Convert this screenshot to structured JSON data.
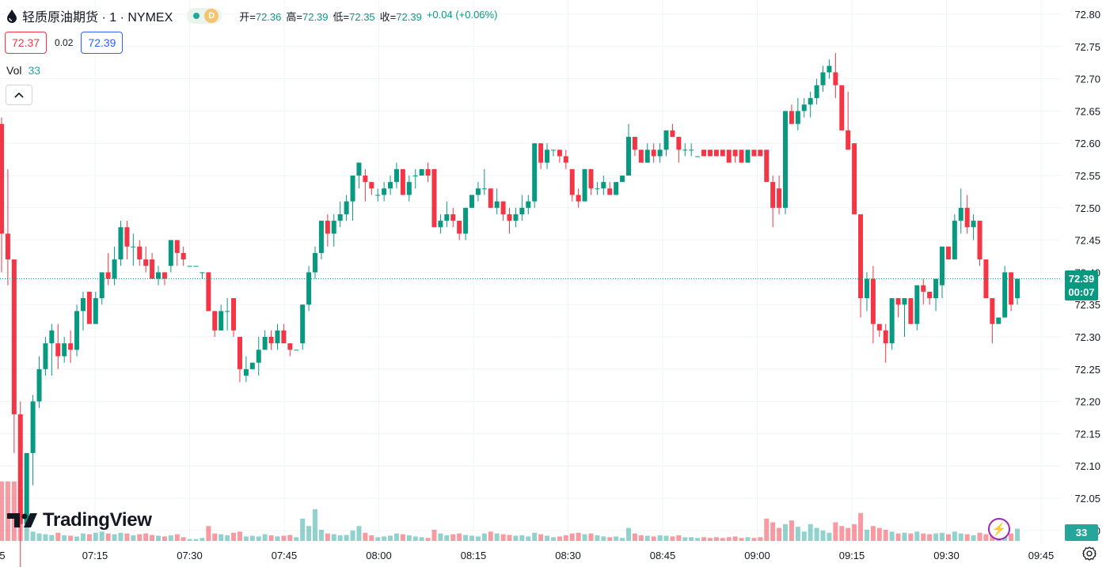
{
  "header": {
    "symbol": "轻质原油期货 · 1 · NYMEX",
    "status_letter": "D",
    "ohlc": [
      {
        "key": "开=",
        "value": "72.36"
      },
      {
        "key": "高=",
        "value": "72.39"
      },
      {
        "key": "低=",
        "value": "72.35"
      },
      {
        "key": "收=",
        "value": "72.39"
      }
    ],
    "change": "+0.04 (+0.06%)"
  },
  "quote": {
    "sell": "72.37",
    "spread": "0.02",
    "buy": "72.39"
  },
  "volume": {
    "label": "Vol",
    "value": "33"
  },
  "branding": {
    "logo_text": "TradingView"
  },
  "badges": {
    "last_price": "72.39",
    "countdown": "00:07",
    "last_volume": "33"
  },
  "colors": {
    "up": "#089981",
    "down": "#f23645",
    "vol_up": "#26a69a",
    "vol_down": "#f23645",
    "grid": "#f0f3fa"
  },
  "chart_data": {
    "type": "candlestick",
    "title": "轻质原油期货 · 1 · NYMEX",
    "interval": "1 minute",
    "ylim": [
      71.99,
      72.83
    ],
    "y_ticks": [
      "72.80",
      "72.75",
      "72.70",
      "72.65",
      "72.60",
      "72.55",
      "72.50",
      "72.45",
      "72.40",
      "72.35",
      "72.30",
      "72.25",
      "72.20",
      "72.15",
      "72.10",
      "72.05",
      "72.00"
    ],
    "x_ticks": [
      "07:15",
      "07:30",
      "07:45",
      "08:00",
      "08:15",
      "08:30",
      "08:45",
      "09:00",
      "09:15",
      "09:30",
      "09:45"
    ],
    "x_tick_partial_left": "5",
    "last_price": 72.39,
    "grid": true,
    "ohlcv": [
      [
        72.63,
        72.64,
        72.4,
        72.46,
        160
      ],
      [
        72.46,
        72.56,
        72.38,
        72.42,
        160
      ],
      [
        72.42,
        72.42,
        72.12,
        72.18,
        160
      ],
      [
        72.18,
        72.2,
        71.93,
        72.01,
        140
      ],
      [
        72.01,
        72.12,
        72.07,
        72.12,
        50
      ],
      [
        72.12,
        72.21,
        72.07,
        72.2,
        25
      ],
      [
        72.2,
        72.27,
        72.19,
        72.25,
        20
      ],
      [
        72.25,
        72.3,
        72.24,
        72.29,
        18
      ],
      [
        72.29,
        72.32,
        72.24,
        72.31,
        16
      ],
      [
        72.29,
        72.32,
        72.25,
        72.27,
        22
      ],
      [
        72.27,
        72.3,
        72.26,
        72.29,
        15
      ],
      [
        72.29,
        72.31,
        72.26,
        72.28,
        14
      ],
      [
        72.28,
        72.35,
        72.27,
        72.34,
        12
      ],
      [
        72.34,
        72.37,
        72.31,
        72.36,
        20
      ],
      [
        72.37,
        72.37,
        72.32,
        72.32,
        18
      ],
      [
        72.32,
        72.37,
        72.32,
        72.36,
        22
      ],
      [
        72.36,
        72.4,
        72.35,
        72.4,
        25
      ],
      [
        72.4,
        72.43,
        72.38,
        72.39,
        20
      ],
      [
        72.39,
        72.44,
        72.38,
        72.42,
        18
      ],
      [
        72.42,
        72.48,
        72.41,
        72.47,
        22
      ],
      [
        72.47,
        72.48,
        72.42,
        72.44,
        20
      ],
      [
        72.44,
        72.46,
        72.41,
        72.44,
        15
      ],
      [
        72.44,
        72.45,
        72.41,
        72.42,
        18
      ],
      [
        72.42,
        72.44,
        72.4,
        72.41,
        20
      ],
      [
        72.42,
        72.43,
        72.39,
        72.39,
        16
      ],
      [
        72.39,
        72.41,
        72.38,
        72.4,
        14
      ],
      [
        72.4,
        72.4,
        72.38,
        72.39,
        12
      ],
      [
        72.41,
        72.45,
        72.4,
        72.45,
        15
      ],
      [
        72.45,
        72.45,
        72.41,
        72.43,
        18
      ],
      [
        72.43,
        72.44,
        72.41,
        72.42,
        10
      ],
      [
        72.41,
        72.41,
        72.41,
        72.41,
        5
      ],
      [
        72.41,
        72.41,
        72.41,
        72.41,
        5
      ],
      [
        72.4,
        72.4,
        72.39,
        72.4,
        8
      ],
      [
        72.4,
        72.4,
        72.34,
        72.34,
        40
      ],
      [
        72.34,
        72.34,
        72.3,
        72.31,
        20
      ],
      [
        72.31,
        72.35,
        72.31,
        72.34,
        18
      ],
      [
        72.34,
        72.36,
        72.31,
        72.34,
        15
      ],
      [
        72.36,
        72.36,
        72.3,
        72.31,
        22
      ],
      [
        72.3,
        72.3,
        72.23,
        72.25,
        25
      ],
      [
        72.24,
        72.27,
        72.23,
        72.25,
        12
      ],
      [
        72.25,
        72.26,
        72.25,
        72.26,
        14
      ],
      [
        72.26,
        72.3,
        72.24,
        72.28,
        12
      ],
      [
        72.28,
        72.31,
        72.28,
        72.3,
        18
      ],
      [
        72.3,
        72.31,
        72.28,
        72.29,
        15
      ],
      [
        72.29,
        72.32,
        72.28,
        72.31,
        12
      ],
      [
        72.31,
        72.32,
        72.29,
        72.29,
        14
      ],
      [
        72.29,
        72.29,
        72.27,
        72.28,
        16
      ],
      [
        72.28,
        72.28,
        72.28,
        72.28,
        10
      ],
      [
        72.29,
        72.35,
        72.28,
        72.35,
        60
      ],
      [
        72.35,
        72.41,
        72.34,
        72.4,
        40
      ],
      [
        72.4,
        72.44,
        72.39,
        72.43,
        85
      ],
      [
        72.43,
        72.48,
        72.42,
        72.48,
        30
      ],
      [
        72.48,
        72.49,
        72.44,
        72.46,
        20
      ],
      [
        72.46,
        72.49,
        72.44,
        72.48,
        18
      ],
      [
        72.48,
        72.51,
        72.47,
        72.49,
        15
      ],
      [
        72.49,
        72.52,
        72.48,
        72.51,
        16
      ],
      [
        72.51,
        72.55,
        72.48,
        72.55,
        28
      ],
      [
        72.55,
        72.57,
        72.53,
        72.57,
        40
      ],
      [
        72.55,
        72.56,
        72.51,
        72.54,
        22
      ],
      [
        72.54,
        72.54,
        72.52,
        72.53,
        15
      ],
      [
        72.52,
        72.53,
        72.51,
        72.52,
        10
      ],
      [
        72.52,
        72.54,
        72.51,
        72.53,
        12
      ],
      [
        72.53,
        72.55,
        72.52,
        72.54,
        14
      ],
      [
        72.54,
        72.57,
        72.53,
        72.56,
        20
      ],
      [
        72.56,
        72.56,
        72.52,
        72.52,
        18
      ],
      [
        72.52,
        72.55,
        72.51,
        72.54,
        15
      ],
      [
        72.55,
        72.56,
        72.53,
        72.55,
        12
      ],
      [
        72.55,
        72.56,
        72.55,
        72.56,
        10
      ],
      [
        72.56,
        72.57,
        72.54,
        72.55,
        8
      ],
      [
        72.56,
        72.56,
        72.47,
        72.47,
        30
      ],
      [
        72.47,
        72.49,
        72.46,
        72.48,
        20
      ],
      [
        72.48,
        72.51,
        72.47,
        72.49,
        15
      ],
      [
        72.49,
        72.5,
        72.47,
        72.48,
        18
      ],
      [
        72.48,
        72.48,
        72.45,
        72.46,
        20
      ],
      [
        72.46,
        72.5,
        72.45,
        72.5,
        16
      ],
      [
        72.5,
        72.52,
        72.5,
        72.52,
        14
      ],
      [
        72.52,
        72.54,
        72.51,
        72.53,
        12
      ],
      [
        72.53,
        72.56,
        72.52,
        72.53,
        20
      ],
      [
        72.53,
        72.53,
        72.5,
        72.5,
        25
      ],
      [
        72.5,
        72.53,
        72.49,
        72.51,
        20
      ],
      [
        72.51,
        72.51,
        72.48,
        72.49,
        18
      ],
      [
        72.49,
        72.5,
        72.46,
        72.48,
        16
      ],
      [
        72.48,
        72.5,
        72.47,
        72.49,
        14
      ],
      [
        72.49,
        72.52,
        72.48,
        72.5,
        15
      ],
      [
        72.5,
        72.52,
        72.49,
        72.51,
        12
      ],
      [
        72.51,
        72.6,
        72.5,
        72.6,
        22
      ],
      [
        72.6,
        72.6,
        72.56,
        72.57,
        18
      ],
      [
        72.57,
        72.6,
        72.56,
        72.59,
        14
      ],
      [
        72.59,
        72.59,
        72.58,
        72.59,
        10
      ],
      [
        72.59,
        72.59,
        72.57,
        72.58,
        12
      ],
      [
        72.58,
        72.59,
        72.56,
        72.57,
        15
      ],
      [
        72.56,
        72.56,
        72.51,
        72.52,
        20
      ],
      [
        72.52,
        72.53,
        72.5,
        72.51,
        22
      ],
      [
        72.51,
        72.56,
        72.51,
        72.56,
        18
      ],
      [
        72.56,
        72.56,
        72.52,
        72.53,
        20
      ],
      [
        72.53,
        72.54,
        72.52,
        72.53,
        15
      ],
      [
        72.53,
        72.55,
        72.52,
        72.54,
        12
      ],
      [
        72.53,
        72.54,
        72.52,
        72.52,
        10
      ],
      [
        72.52,
        72.54,
        72.52,
        72.54,
        12
      ],
      [
        72.54,
        72.55,
        72.54,
        72.55,
        8
      ],
      [
        72.55,
        72.63,
        72.55,
        72.61,
        35
      ],
      [
        72.61,
        72.61,
        72.58,
        72.59,
        20
      ],
      [
        72.59,
        72.59,
        72.57,
        72.57,
        15
      ],
      [
        72.57,
        72.6,
        72.57,
        72.59,
        14
      ],
      [
        72.59,
        72.6,
        72.57,
        72.58,
        12
      ],
      [
        72.58,
        72.6,
        72.57,
        72.59,
        15
      ],
      [
        72.59,
        72.62,
        72.58,
        72.62,
        14
      ],
      [
        72.62,
        72.63,
        72.61,
        72.61,
        12
      ],
      [
        72.61,
        72.61,
        72.57,
        72.59,
        15
      ],
      [
        72.59,
        72.6,
        72.58,
        72.59,
        10
      ],
      [
        72.59,
        72.6,
        72.58,
        72.59,
        10
      ],
      [
        72.58,
        72.58,
        72.58,
        72.58,
        8
      ],
      [
        72.59,
        72.59,
        72.58,
        72.58,
        10
      ],
      [
        72.59,
        72.59,
        72.58,
        72.58,
        8
      ],
      [
        72.59,
        72.59,
        72.58,
        72.58,
        10
      ],
      [
        72.59,
        72.59,
        72.58,
        72.58,
        8
      ],
      [
        72.59,
        72.59,
        72.57,
        72.57,
        10
      ],
      [
        72.59,
        72.59,
        72.57,
        72.58,
        12
      ],
      [
        72.59,
        72.59,
        72.57,
        72.57,
        8
      ],
      [
        72.57,
        72.59,
        72.57,
        72.59,
        10
      ],
      [
        72.59,
        72.59,
        72.58,
        72.58,
        8
      ],
      [
        72.59,
        72.59,
        72.58,
        72.58,
        10
      ],
      [
        72.59,
        72.59,
        72.54,
        72.54,
        60
      ],
      [
        72.54,
        72.55,
        72.47,
        72.5,
        50
      ],
      [
        72.53,
        72.55,
        72.49,
        72.5,
        35
      ],
      [
        72.5,
        72.65,
        72.49,
        72.65,
        45
      ],
      [
        72.65,
        72.66,
        72.63,
        72.63,
        55
      ],
      [
        72.63,
        72.67,
        72.62,
        72.65,
        38
      ],
      [
        72.65,
        72.67,
        72.64,
        72.66,
        25
      ],
      [
        72.66,
        72.68,
        72.64,
        72.67,
        45
      ],
      [
        72.67,
        72.7,
        72.66,
        72.69,
        35
      ],
      [
        72.69,
        72.72,
        72.68,
        72.71,
        28
      ],
      [
        72.71,
        72.73,
        72.7,
        72.72,
        22
      ],
      [
        72.71,
        72.74,
        72.67,
        72.69,
        50
      ],
      [
        72.69,
        72.69,
        72.62,
        72.62,
        40
      ],
      [
        72.62,
        72.68,
        72.59,
        72.59,
        35
      ],
      [
        72.6,
        72.6,
        72.49,
        72.49,
        45
      ],
      [
        72.49,
        72.49,
        72.33,
        72.36,
        75
      ],
      [
        72.36,
        72.4,
        72.34,
        72.39,
        30
      ],
      [
        72.39,
        72.41,
        72.29,
        72.32,
        40
      ],
      [
        72.32,
        72.32,
        72.3,
        72.31,
        35
      ],
      [
        72.31,
        72.32,
        72.26,
        72.29,
        30
      ],
      [
        72.29,
        72.36,
        72.28,
        72.36,
        25
      ],
      [
        72.36,
        72.36,
        72.33,
        72.35,
        20
      ],
      [
        72.35,
        72.36,
        72.3,
        72.36,
        22
      ],
      [
        72.36,
        72.36,
        72.32,
        72.32,
        20
      ],
      [
        72.32,
        72.38,
        72.31,
        72.38,
        25
      ],
      [
        72.38,
        72.39,
        72.35,
        72.37,
        20
      ],
      [
        72.37,
        72.37,
        72.35,
        72.36,
        18
      ],
      [
        72.36,
        72.39,
        72.34,
        72.39,
        20
      ],
      [
        72.38,
        72.44,
        72.36,
        72.44,
        22
      ],
      [
        72.44,
        72.44,
        72.42,
        72.42,
        18
      ],
      [
        72.42,
        72.49,
        72.42,
        72.48,
        25
      ],
      [
        72.48,
        72.53,
        72.46,
        72.5,
        20
      ],
      [
        72.5,
        72.52,
        72.46,
        72.47,
        18
      ],
      [
        72.47,
        72.49,
        72.45,
        72.48,
        15
      ],
      [
        72.48,
        72.48,
        72.41,
        72.42,
        22
      ],
      [
        72.42,
        72.42,
        72.36,
        72.36,
        18
      ],
      [
        72.36,
        72.36,
        72.29,
        72.32,
        25
      ],
      [
        72.32,
        72.33,
        72.32,
        72.33,
        20
      ],
      [
        72.33,
        72.41,
        72.33,
        72.4,
        22
      ],
      [
        72.4,
        72.4,
        72.34,
        72.35,
        20
      ],
      [
        72.36,
        72.39,
        72.35,
        72.39,
        33
      ]
    ]
  }
}
